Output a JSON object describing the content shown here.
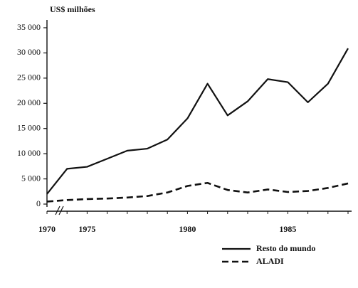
{
  "chart_data": {
    "type": "line",
    "y_label": "US$ milhões",
    "categories": [
      "1970",
      null,
      "1975",
      null,
      null,
      null,
      null,
      "1980",
      null,
      null,
      null,
      null,
      "1985",
      null,
      null,
      null
    ],
    "series": [
      {
        "name": "Resto do mundo",
        "color": "#111111",
        "dash": "solid",
        "values": [
          2000,
          7000,
          7400,
          9000,
          10600,
          11000,
          12800,
          17000,
          23900,
          17600,
          20400,
          24800,
          24200,
          20200,
          23900,
          30900
        ]
      },
      {
        "name": "ALADI",
        "color": "#111111",
        "dash": "dashed",
        "values": [
          500,
          800,
          1000,
          1100,
          1300,
          1600,
          2300,
          3600,
          4200,
          2800,
          2300,
          2900,
          2400,
          2600,
          3200,
          4100
        ]
      }
    ],
    "ylim": [
      0,
      35000
    ],
    "yticks": [
      0,
      {
        "value": 5000,
        "label": "5 000"
      },
      {
        "value": 10000,
        "label": "10 000"
      },
      {
        "value": 15000,
        "label": "15 000"
      },
      {
        "value": 20000,
        "label": "20 000"
      },
      {
        "value": 25000,
        "label": "25 000"
      },
      {
        "value": 30000,
        "label": "30 000"
      },
      {
        "value": 35000,
        "label": "35 000"
      }
    ],
    "legend": "bottom-right"
  }
}
